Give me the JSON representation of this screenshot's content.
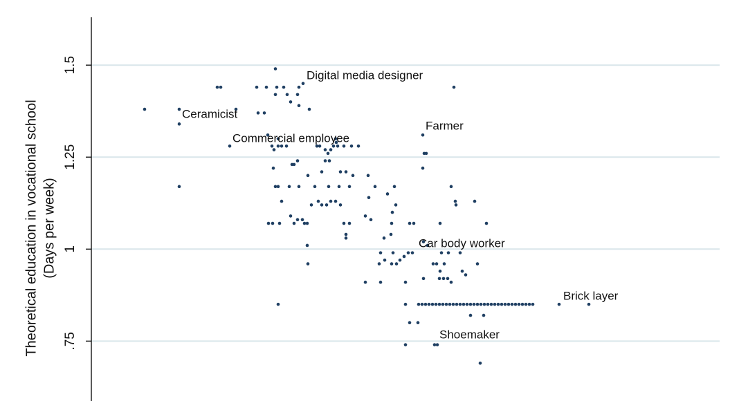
{
  "chart_data": {
    "type": "scatter",
    "y_label": [
      "Theoretical education in vocational school",
      "(Days per week)"
    ],
    "annotations": [
      "Digital media designer",
      "Ceramicist",
      "Commercial employee",
      "Farmer",
      "Car body worker",
      "Brick layer",
      "Shoemaker"
    ],
    "color": "#1f3f62",
    "grid": true,
    "xlim": [
      0,
      908
    ],
    "ylim": [
      0.59,
      1.63
    ],
    "yticks": [
      {
        "value": 0.75,
        "label": ".75"
      },
      1,
      1.25,
      1.5
    ],
    "x": [
      77,
      127,
      127,
      127,
      182,
      187,
      209,
      200,
      239,
      253,
      241,
      250,
      266,
      268,
      278,
      283,
      288,
      298,
      300,
      306,
      315,
      266,
      300,
      255,
      261,
      270,
      275,
      282,
      264,
      270,
      263,
      293,
      298,
      290,
      266,
      270,
      286,
      300,
      313,
      323,
      343,
      358,
      373,
      378,
      333,
      360,
      368,
      275,
      288,
      298,
      305,
      318,
      328,
      333,
      346,
      353,
      360,
      340,
      256,
      262,
      272,
      293,
      308,
      312,
      365,
      373,
      368,
      368,
      312,
      313,
      270,
      326,
      330,
      338,
      342,
      346,
      350,
      354,
      356,
      365,
      376,
      386,
      353,
      338,
      344,
      400,
      410,
      438,
      401,
      428,
      440,
      396,
      404,
      435,
      434,
      433,
      423,
      418,
      416,
      424,
      434,
      441,
      436,
      446,
      452,
      458,
      464,
      466,
      460,
      480,
      486,
      504,
      494,
      499,
      504,
      506,
      510,
      503,
      509,
      515,
      520,
      536,
      541,
      558,
      533,
      516,
      396,
      418,
      454,
      480,
      479,
      481,
      484,
      479,
      524,
      520,
      526,
      527,
      554,
      571,
      454,
      460,
      472,
      454,
      496,
      500,
      562,
      548,
      567,
      676,
      719,
      473,
      478,
      483,
      488,
      493,
      498,
      503,
      508,
      513,
      518,
      523,
      528,
      533,
      538,
      543,
      548,
      553,
      558,
      563,
      568,
      573,
      578,
      583,
      588,
      593,
      598,
      603,
      608,
      613,
      618,
      623,
      628,
      633,
      638
    ],
    "values": [
      1.38,
      1.38,
      1.34,
      1.17,
      1.44,
      1.44,
      1.38,
      1.28,
      1.44,
      1.44,
      1.37,
      1.37,
      1.49,
      1.44,
      1.44,
      1.42,
      1.4,
      1.42,
      1.44,
      1.45,
      1.38,
      1.42,
      1.39,
      1.31,
      1.28,
      1.28,
      1.28,
      1.28,
      1.27,
      1.3,
      1.22,
      1.23,
      1.24,
      1.23,
      1.17,
      1.17,
      1.17,
      1.17,
      1.2,
      1.17,
      1.17,
      1.17,
      1.17,
      1.2,
      1.21,
      1.21,
      1.21,
      1.13,
      1.09,
      1.08,
      1.08,
      1.12,
      1.13,
      1.12,
      1.13,
      1.13,
      1.12,
      1.12,
      1.07,
      1.07,
      1.07,
      1.07,
      1.07,
      1.07,
      1.07,
      1.07,
      1.04,
      1.03,
      1.01,
      0.96,
      0.85,
      1.28,
      1.28,
      1.27,
      1.26,
      1.27,
      1.28,
      1.29,
      1.28,
      1.28,
      1.28,
      1.28,
      1.3,
      1.24,
      1.24,
      1.2,
      1.17,
      1.17,
      1.14,
      1.15,
      1.12,
      1.09,
      1.08,
      1.1,
      1.07,
      1.04,
      1.03,
      0.99,
      0.96,
      0.97,
      0.96,
      0.96,
      0.99,
      0.97,
      0.98,
      0.99,
      0.99,
      1.07,
      1.07,
      1.02,
      1.01,
      1.07,
      0.96,
      0.96,
      0.94,
      0.99,
      0.96,
      0.92,
      0.92,
      0.92,
      0.91,
      0.94,
      0.93,
      0.96,
      0.99,
      0.99,
      0.91,
      0.91,
      0.91,
      0.92,
      1.31,
      1.26,
      1.26,
      1.22,
      1.44,
      1.17,
      1.13,
      1.12,
      1.13,
      1.07,
      0.85,
      0.8,
      0.8,
      0.74,
      0.74,
      0.74,
      0.69,
      0.82,
      0.82,
      0.85,
      0.85,
      0.85,
      0.85,
      0.85,
      0.85,
      0.85,
      0.85,
      0.85,
      0.85,
      0.85,
      0.85,
      0.85,
      0.85,
      0.85,
      0.85,
      0.85,
      0.85,
      0.85,
      0.85,
      0.85,
      0.85,
      0.85,
      0.85,
      0.85,
      0.85,
      0.85,
      0.85,
      0.85,
      0.85,
      0.85,
      0.85,
      0.85,
      0.85,
      0.85,
      0.85
    ]
  }
}
